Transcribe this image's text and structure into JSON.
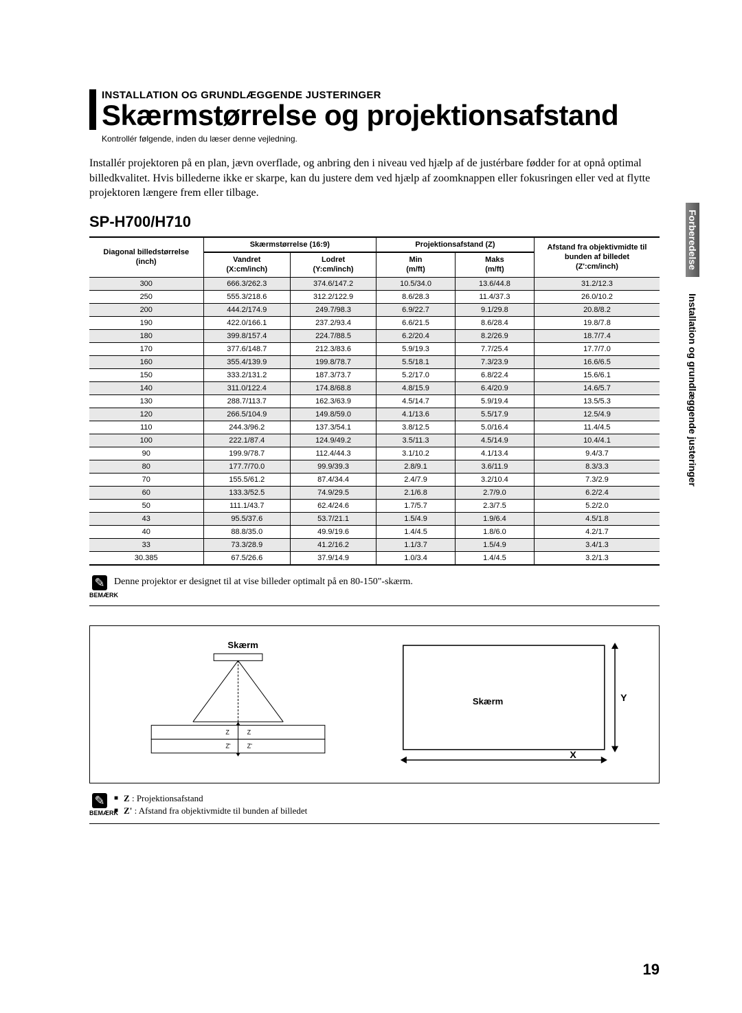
{
  "section": {
    "subtitle": "INSTALLATION OG GRUNDLÆGGENDE JUSTERINGER",
    "title": "Skærmstørrelse og projektionsafstand",
    "note": "Kontrollér følgende, inden du læser denne vejledning."
  },
  "intro": "Installér projektoren på en plan, jævn overflade, og anbring den i niveau ved hjælp af de justérbare fødder for at opnå optimal billedkvalitet. Hvis billederne ikke er skarpe, kan du justere dem ved hjælp af zoomknappen eller fokusringen eller ved at flytte projektoren længere frem eller tilbage.",
  "model": "SP-H700/H710",
  "table": {
    "header_group1": "Skærmstørrelse (16:9)",
    "header_group2": "Projektionsafstand (Z)",
    "header_group3_line1": "Afstand fra objektivmidte til",
    "header_group3_line2": "bunden af billedet",
    "header_group3_line3": "(Z':cm/inch)",
    "col_diagonal_line1": "Diagonal billedstørrelse",
    "col_diagonal_line2": "(inch)",
    "col_h_line1": "Vandret",
    "col_h_line2": "(X:cm/inch)",
    "col_v_line1": "Lodret",
    "col_v_line2": "(Y:cm/inch)",
    "col_min_line1": "Min",
    "col_min_line2": "(m/ft)",
    "col_max_line1": "Maks",
    "col_max_line2": "(m/ft)",
    "rows": [
      [
        "300",
        "666.3/262.3",
        "374.6/147.2",
        "10.5/34.0",
        "13.6/44.8",
        "31.2/12.3"
      ],
      [
        "250",
        "555.3/218.6",
        "312.2/122.9",
        "8.6/28.3",
        "11.4/37.3",
        "26.0/10.2"
      ],
      [
        "200",
        "444.2/174.9",
        "249.7/98.3",
        "6.9/22.7",
        "9.1/29.8",
        "20.8/8.2"
      ],
      [
        "190",
        "422.0/166.1",
        "237.2/93.4",
        "6.6/21.5",
        "8.6/28.4",
        "19.8/7.8"
      ],
      [
        "180",
        "399.8/157.4",
        "224.7/88.5",
        "6.2/20.4",
        "8.2/26.9",
        "18.7/7.4"
      ],
      [
        "170",
        "377.6/148.7",
        "212.3/83.6",
        "5.9/19.3",
        "7.7/25.4",
        "17.7/7.0"
      ],
      [
        "160",
        "355.4/139.9",
        "199.8/78.7",
        "5.5/18.1",
        "7.3/23.9",
        "16.6/6.5"
      ],
      [
        "150",
        "333.2/131.2",
        "187.3/73.7",
        "5.2/17.0",
        "6.8/22.4",
        "15.6/6.1"
      ],
      [
        "140",
        "311.0/122.4",
        "174.8/68.8",
        "4.8/15.9",
        "6.4/20.9",
        "14.6/5.7"
      ],
      [
        "130",
        "288.7/113.7",
        "162.3/63.9",
        "4.5/14.7",
        "5.9/19.4",
        "13.5/5.3"
      ],
      [
        "120",
        "266.5/104.9",
        "149.8/59.0",
        "4.1/13.6",
        "5.5/17.9",
        "12.5/4.9"
      ],
      [
        "110",
        "244.3/96.2",
        "137.3/54.1",
        "3.8/12.5",
        "5.0/16.4",
        "11.4/4.5"
      ],
      [
        "100",
        "222.1/87.4",
        "124.9/49.2",
        "3.5/11.3",
        "4.5/14.9",
        "10.4/4.1"
      ],
      [
        "90",
        "199.9/78.7",
        "112.4/44.3",
        "3.1/10.2",
        "4.1/13.4",
        "9.4/3.7"
      ],
      [
        "80",
        "177.7/70.0",
        "99.9/39.3",
        "2.8/9.1",
        "3.6/11.9",
        "8.3/3.3"
      ],
      [
        "70",
        "155.5/61.2",
        "87.4/34.4",
        "2.4/7.9",
        "3.2/10.4",
        "7.3/2.9"
      ],
      [
        "60",
        "133.3/52.5",
        "74.9/29.5",
        "2.1/6.8",
        "2.7/9.0",
        "6.2/2.4"
      ],
      [
        "50",
        "111.1/43.7",
        "62.4/24.6",
        "1.7/5.7",
        "2.3/7.5",
        "5.2/2.0"
      ],
      [
        "43",
        "95.5/37.6",
        "53.7/21.1",
        "1.5/4.9",
        "1.9/6.4",
        "4.5/1.8"
      ],
      [
        "40",
        "88.8/35.0",
        "49.9/19.6",
        "1.4/4.5",
        "1.8/6.0",
        "4.2/1.7"
      ],
      [
        "33",
        "73.3/28.9",
        "41.2/16.2",
        "1.1/3.7",
        "1.5/4.9",
        "3.4/1.3"
      ],
      [
        "30.385",
        "67.5/26.6",
        "37.9/14.9",
        "1.0/3.4",
        "1.4/4.5",
        "3.2/1.3"
      ]
    ]
  },
  "note_box": {
    "label": "BEMÆRK",
    "text": "Denne projektor er designet til at vise billeder optimalt på en 80-150\"-skærm."
  },
  "diagram": {
    "screen_label": "Skærm",
    "z_label": "Z",
    "zp_label": "Z'",
    "x_label": "X",
    "y_label": "Y"
  },
  "footnote": {
    "label": "BEMÆRK",
    "line1_bold": "Z",
    "line1_rest": " : Projektionsafstand",
    "line2_bold": "Z'",
    "line2_rest": " : Afstand fra objektivmidte til bunden af billedet"
  },
  "page_number": "19",
  "side_tabs": {
    "tab1": "Forberedelse",
    "tab2": "Installation og grundlæggende justeringer"
  },
  "colors": {
    "row_stripe": "#e8e8e8",
    "tab_dark": "#6a6a6a"
  }
}
